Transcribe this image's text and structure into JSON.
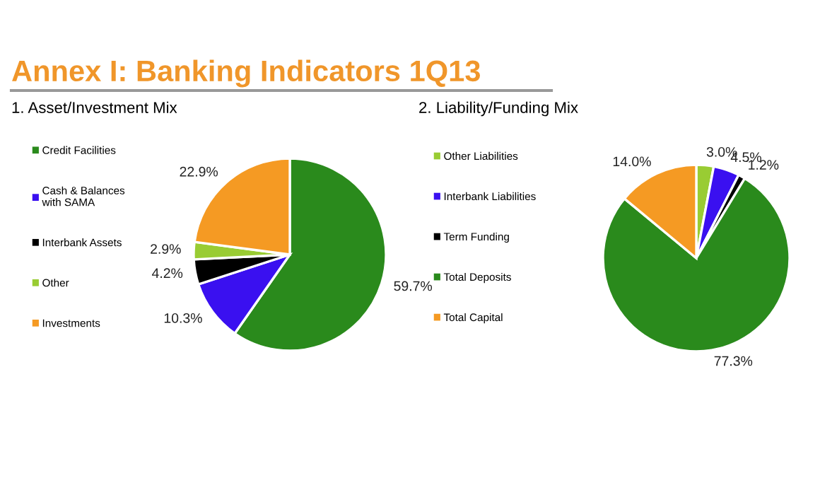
{
  "chart_data": [
    {
      "type": "pie",
      "title": "Annex I: Banking Indicators 1Q13",
      "subtitle": "1. Asset/Investment Mix",
      "categories": [
        "Credit Facilities",
        "Cash & Balances\nwith SAMA",
        "Interbank Assets",
        "Other",
        "Investments"
      ],
      "values": [
        59.7,
        10.3,
        4.2,
        2.9,
        22.9
      ],
      "value_labels": [
        "59.7%",
        "10.3%",
        "4.2%",
        "2.9%",
        "22.9%"
      ],
      "colors": [
        "#2a8a1c",
        "#3a10f0",
        "#000000",
        "#99cc33",
        "#f59a23"
      ],
      "legend": "left"
    },
    {
      "type": "pie",
      "title": "2. Liability/Funding Mix",
      "categories": [
        "Other Liabilities",
        "Interbank Liabilities",
        "Term Funding",
        "Total Deposits",
        "Total Capital"
      ],
      "values": [
        3.0,
        4.5,
        1.2,
        77.3,
        14.0
      ],
      "value_labels": [
        "3.0%",
        "4.5%",
        "1.2%",
        "77.3%",
        "14.0%"
      ],
      "colors": [
        "#99cc33",
        "#3a10f0",
        "#000000",
        "#2a8a1c",
        "#f59a23"
      ],
      "legend": "left"
    }
  ]
}
